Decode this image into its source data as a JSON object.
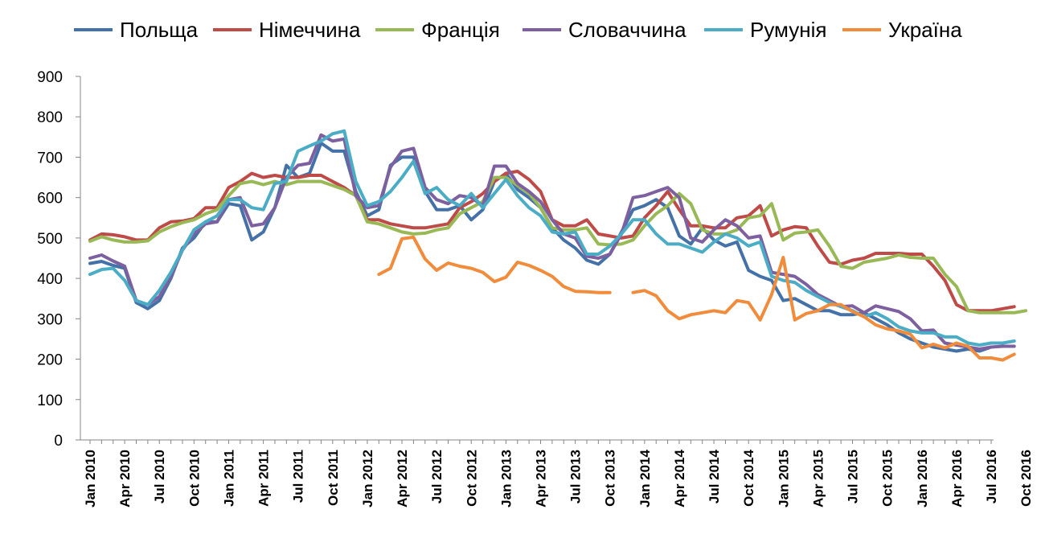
{
  "chart_data": {
    "type": "line",
    "title": "",
    "xlabel": "",
    "ylabel": "",
    "ylim": [
      0,
      900
    ],
    "yticks": [
      0,
      100,
      200,
      300,
      400,
      500,
      600,
      700,
      800,
      900
    ],
    "grid": false,
    "legend_position": "top",
    "x_labels": [
      "Jan 2010",
      "Apr 2010",
      "Jul 2010",
      "Oct 2010",
      "Jan 2011",
      "Apr 2011",
      "Jul 2011",
      "Oct 2011",
      "Jan 2012",
      "Apr 2012",
      "Jul 2012",
      "Oct 2012",
      "Jan 2013",
      "Apr 2013",
      "Jul 2013",
      "Oct 2013",
      "Jan 2014",
      "Apr 2014",
      "Jul 2014",
      "Oct 2014",
      "Jan 2015",
      "Apr 2015",
      "Jul 2015",
      "Oct 2015",
      "Jan 2016",
      "Apr 2016",
      "Jul 2016",
      "Oct 2016"
    ],
    "x_label_step": 3,
    "series": [
      {
        "name": "Польща",
        "color": "#4472A8",
        "values": [
          437,
          442,
          432,
          425,
          340,
          325,
          345,
          400,
          475,
          500,
          540,
          540,
          585,
          580,
          495,
          515,
          575,
          680,
          650,
          660,
          735,
          715,
          715,
          615,
          555,
          570,
          680,
          700,
          700,
          615,
          570,
          570,
          580,
          545,
          570,
          640,
          660,
          620,
          600,
          575,
          525,
          495,
          475,
          445,
          435,
          460,
          515,
          570,
          580,
          595,
          575,
          505,
          485,
          525,
          495,
          480,
          490,
          420,
          405,
          395,
          345,
          350,
          335,
          320,
          320,
          310,
          310,
          315,
          300,
          285,
          265,
          250,
          240,
          230,
          225,
          220,
          225,
          220,
          230
        ]
      },
      {
        "name": "Німеччина",
        "color": "#BE4B48",
        "values": [
          495,
          510,
          508,
          503,
          495,
          495,
          525,
          540,
          542,
          548,
          575,
          575,
          625,
          640,
          660,
          650,
          655,
          650,
          650,
          655,
          655,
          640,
          625,
          605,
          545,
          545,
          535,
          530,
          525,
          525,
          530,
          535,
          575,
          590,
          610,
          640,
          660,
          665,
          645,
          615,
          545,
          530,
          530,
          545,
          510,
          505,
          500,
          505,
          550,
          580,
          615,
          570,
          530,
          530,
          525,
          525,
          550,
          555,
          580,
          505,
          520,
          528,
          525,
          480,
          440,
          435,
          445,
          450,
          462,
          462,
          462,
          460,
          460,
          430,
          395,
          335,
          320,
          320,
          320,
          325,
          330
        ]
      },
      {
        "name": "Франція",
        "color": "#98B955",
        "values": [
          492,
          503,
          495,
          490,
          490,
          493,
          515,
          528,
          538,
          545,
          560,
          570,
          605,
          635,
          640,
          632,
          640,
          632,
          640,
          640,
          640,
          630,
          620,
          605,
          540,
          535,
          525,
          515,
          510,
          512,
          520,
          525,
          560,
          575,
          590,
          650,
          650,
          630,
          610,
          575,
          525,
          520,
          520,
          525,
          485,
          483,
          485,
          495,
          530,
          560,
          580,
          610,
          585,
          520,
          510,
          510,
          520,
          550,
          555,
          585,
          495,
          512,
          515,
          520,
          480,
          430,
          425,
          440,
          445,
          450,
          458,
          452,
          450,
          450,
          410,
          380,
          320,
          315,
          315,
          315,
          315,
          320
        ]
      },
      {
        "name": "Словаччина",
        "color": "#7D60A0",
        "values": [
          450,
          458,
          443,
          430,
          345,
          335,
          355,
          405,
          470,
          510,
          535,
          540,
          595,
          600,
          530,
          535,
          575,
          650,
          680,
          685,
          755,
          740,
          745,
          605,
          575,
          580,
          675,
          715,
          722,
          625,
          595,
          585,
          605,
          600,
          580,
          678,
          678,
          635,
          615,
          590,
          545,
          510,
          500,
          455,
          450,
          460,
          510,
          600,
          605,
          615,
          625,
          600,
          500,
          490,
          520,
          545,
          530,
          500,
          505,
          415,
          410,
          405,
          385,
          360,
          345,
          330,
          332,
          315,
          332,
          325,
          318,
          300,
          270,
          272,
          240,
          235,
          230,
          225,
          230,
          232,
          232
        ]
      },
      {
        "name": "Румунія",
        "color": "#4BACC6",
        "values": [
          410,
          422,
          425,
          395,
          345,
          335,
          370,
          415,
          470,
          520,
          540,
          555,
          595,
          595,
          575,
          570,
          635,
          640,
          715,
          728,
          740,
          758,
          765,
          640,
          580,
          590,
          615,
          650,
          690,
          610,
          625,
          595,
          580,
          610,
          575,
          610,
          645,
          605,
          575,
          555,
          515,
          510,
          515,
          460,
          460,
          480,
          510,
          545,
          545,
          510,
          485,
          485,
          475,
          465,
          490,
          510,
          500,
          480,
          490,
          405,
          395,
          390,
          370,
          355,
          340,
          330,
          320,
          305,
          315,
          300,
          280,
          270,
          265,
          265,
          255,
          255,
          240,
          235,
          240,
          240,
          245
        ]
      },
      {
        "name": "Україна",
        "color": "#F08C3C",
        "values": [
          null,
          null,
          null,
          null,
          null,
          null,
          null,
          null,
          null,
          null,
          null,
          null,
          null,
          null,
          null,
          null,
          null,
          null,
          null,
          null,
          null,
          null,
          null,
          null,
          null,
          410,
          425,
          498,
          502,
          448,
          420,
          438,
          430,
          425,
          415,
          392,
          403,
          440,
          432,
          420,
          405,
          380,
          368,
          367,
          365,
          365,
          null,
          365,
          370,
          357,
          320,
          300,
          310,
          315,
          320,
          315,
          345,
          340,
          297,
          360,
          452,
          297,
          313,
          320,
          335,
          335,
          318,
          305,
          285,
          275,
          270,
          262,
          228,
          237,
          228,
          240,
          232,
          203,
          203,
          198,
          212
        ]
      }
    ]
  }
}
